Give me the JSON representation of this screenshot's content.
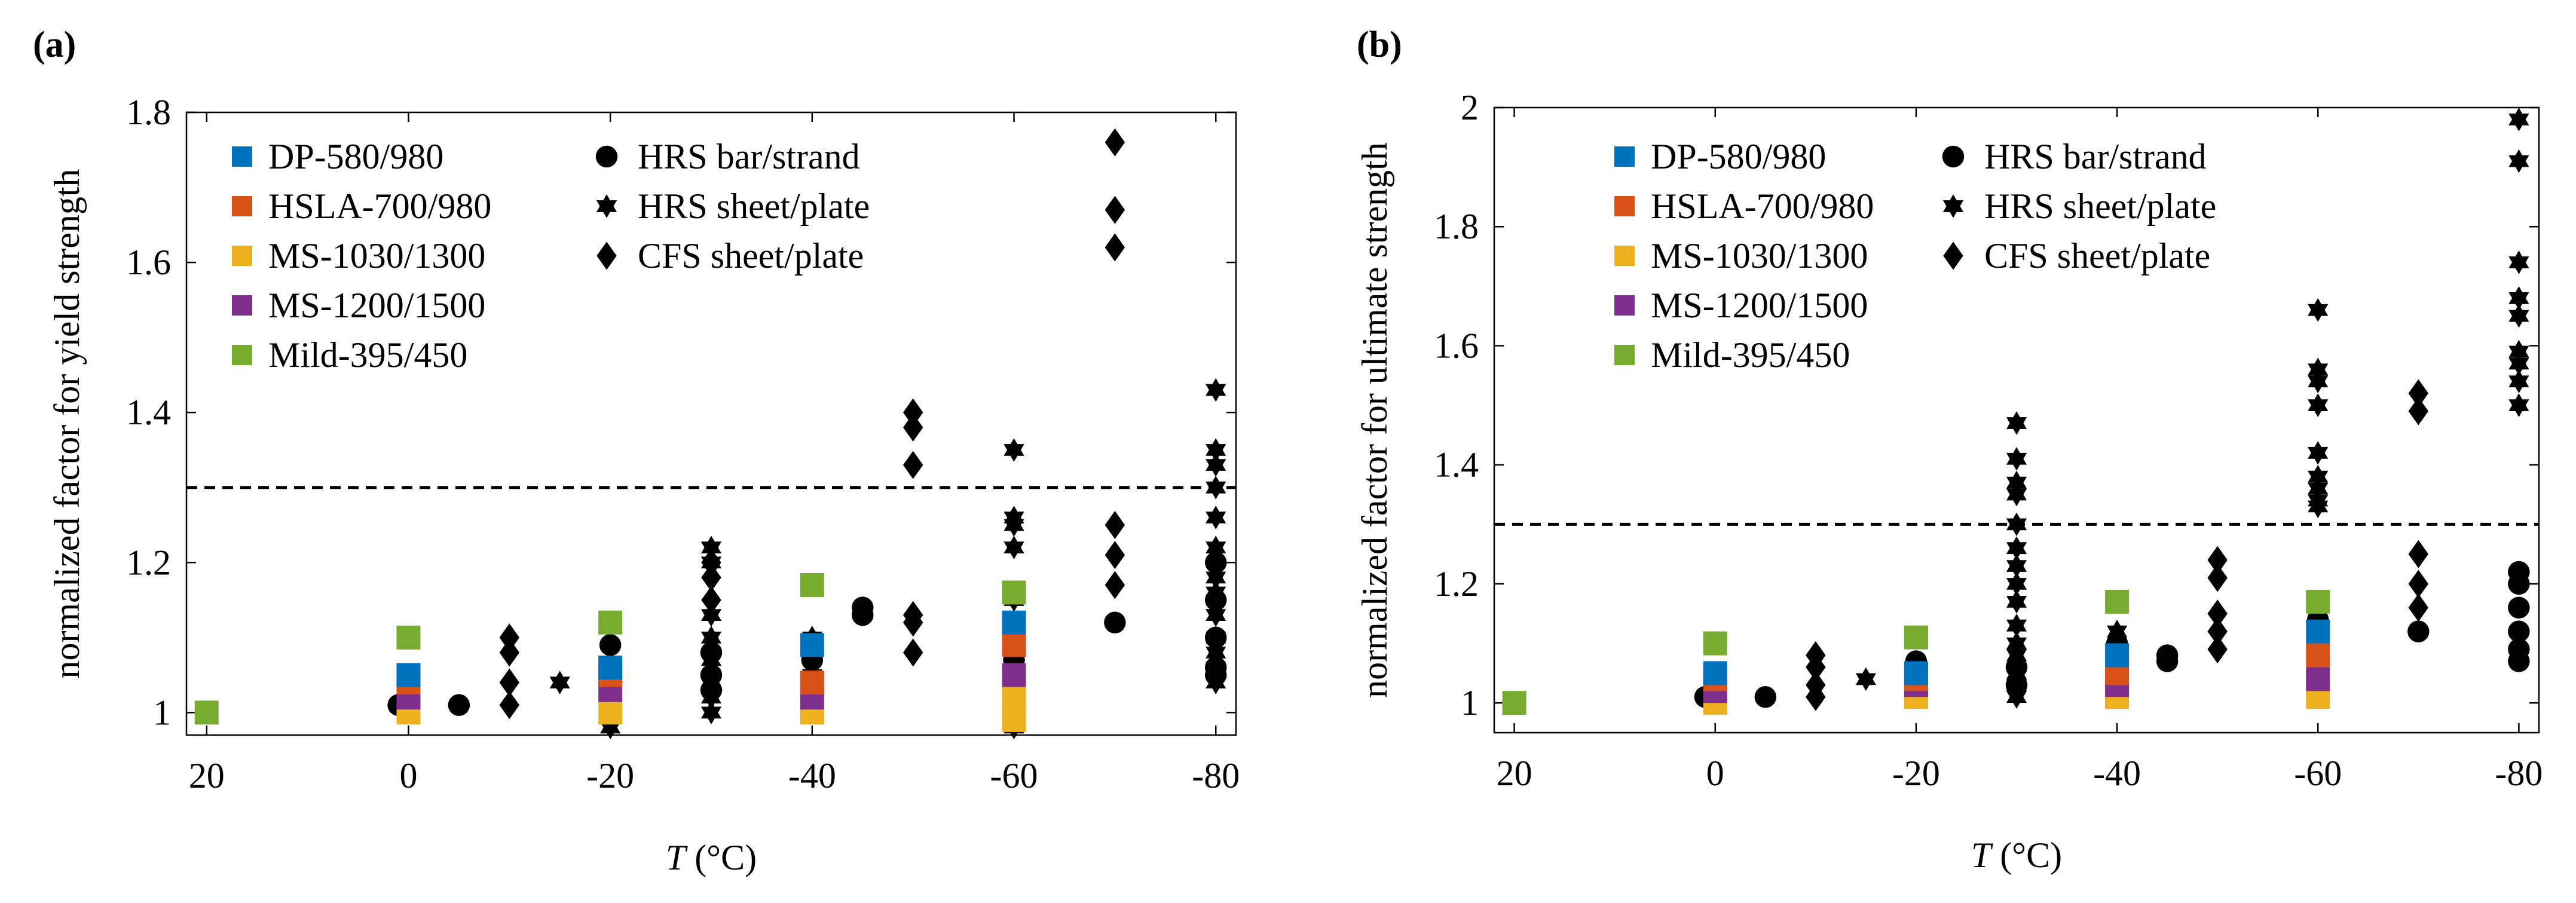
{
  "colors": {
    "DP-580/980": "#0072BD",
    "HSLA-700/980": "#D95319",
    "MS-1030/1300": "#EDB120",
    "MS-1200/1500": "#7E2F8E",
    "Mild-395/450": "#77AC30",
    "black": "#000000"
  },
  "chart_data": [
    {
      "panel_label": "(a)",
      "type": "scatter",
      "xlabel_italic": "T",
      "xlabel_unit": " (°C)",
      "ylabel": "normalized factor for yield strength",
      "xlim": [
        22,
        -82
      ],
      "ylim": [
        0.97,
        1.8
      ],
      "xticks": [
        20,
        0,
        -20,
        -40,
        -60,
        -80
      ],
      "xtick_labels": [
        "20",
        "0",
        "-20",
        "-40",
        "-60",
        "-80"
      ],
      "yticks": [
        1,
        1.2,
        1.4,
        1.6,
        1.8
      ],
      "ytick_labels": [
        "1",
        "1.2",
        "1.4",
        "1.6",
        "1.8"
      ],
      "reference_line": 1.3,
      "legend_left": [
        "DP-580/980",
        "HSLA-700/980",
        "MS-1030/1300",
        "MS-1200/1500",
        "Mild-395/450"
      ],
      "legend_right": [
        {
          "marker": "circle",
          "label": "HRS bar/strand"
        },
        {
          "marker": "hexagram",
          "label": "HRS sheet/plate"
        },
        {
          "marker": "diamond",
          "label": "CFS sheet/plate"
        }
      ],
      "series": [
        {
          "name": "HRS bar/strand",
          "marker": "circle",
          "points": [
            [
              -5,
              1.01
            ],
            [
              1,
              1.01
            ],
            [
              -20,
              1.09
            ],
            [
              -20,
              1.06
            ],
            [
              -20,
              1.03
            ],
            [
              -30,
              1.08
            ],
            [
              -30,
              1.05
            ],
            [
              -30,
              1.03
            ],
            [
              -40,
              1.07
            ],
            [
              -40,
              1.04
            ],
            [
              -45,
              1.14
            ],
            [
              -45,
              1.13
            ],
            [
              -60,
              1.1
            ],
            [
              -60,
              1.07
            ],
            [
              -60,
              1.04
            ],
            [
              -70,
              1.12
            ],
            [
              -80,
              1.2
            ],
            [
              -80,
              1.15
            ],
            [
              -80,
              1.1
            ],
            [
              -80,
              1.06
            ],
            [
              -80,
              1.05
            ]
          ]
        },
        {
          "name": "HRS sheet/plate",
          "marker": "hexagram",
          "points": [
            [
              -15,
              1.04
            ],
            [
              -20,
              0.98
            ],
            [
              -30,
              1.22
            ],
            [
              -30,
              1.2
            ],
            [
              -30,
              1.13
            ],
            [
              -30,
              1.1
            ],
            [
              -30,
              1.07
            ],
            [
              -30,
              1.04
            ],
            [
              -30,
              1.02
            ],
            [
              -30,
              1.0
            ],
            [
              -40,
              1.1
            ],
            [
              -40,
              1.05
            ],
            [
              -60,
              1.35
            ],
            [
              -60,
              1.26
            ],
            [
              -60,
              1.25
            ],
            [
              -60,
              1.22
            ],
            [
              -60,
              1.15
            ],
            [
              -60,
              1.1
            ],
            [
              -60,
              1.05
            ],
            [
              -60,
              0.98
            ],
            [
              -80,
              1.43
            ],
            [
              -80,
              1.35
            ],
            [
              -80,
              1.33
            ],
            [
              -80,
              1.3
            ],
            [
              -80,
              1.26
            ],
            [
              -80,
              1.22
            ],
            [
              -80,
              1.18
            ],
            [
              -80,
              1.16
            ],
            [
              -80,
              1.13
            ],
            [
              -80,
              1.1
            ],
            [
              -80,
              1.08
            ],
            [
              -80,
              1.06
            ],
            [
              -80,
              1.04
            ]
          ]
        },
        {
          "name": "CFS sheet/plate",
          "marker": "diamond",
          "points": [
            [
              -10,
              1.1
            ],
            [
              -10,
              1.08
            ],
            [
              -10,
              1.04
            ],
            [
              -10,
              1.01
            ],
            [
              -30,
              1.2
            ],
            [
              -30,
              1.18
            ],
            [
              -30,
              1.15
            ],
            [
              -50,
              1.4
            ],
            [
              -50,
              1.38
            ],
            [
              -50,
              1.33
            ],
            [
              -50,
              1.13
            ],
            [
              -50,
              1.12
            ],
            [
              -50,
              1.08
            ],
            [
              -70,
              1.76
            ],
            [
              -70,
              1.67
            ],
            [
              -70,
              1.62
            ],
            [
              -70,
              1.25
            ],
            [
              -70,
              1.21
            ],
            [
              -70,
              1.17
            ]
          ]
        },
        {
          "name": "MS-1030/1300",
          "marker": "square",
          "points": [
            [
              0,
              1.0
            ],
            [
              -20,
              1.0
            ],
            [
              -40,
              1.0
            ],
            [
              -60,
              1.02
            ],
            [
              -60,
              0.99
            ]
          ]
        },
        {
          "name": "MS-1200/1500",
          "marker": "square",
          "points": [
            [
              0,
              1.02
            ],
            [
              -20,
              1.03
            ],
            [
              -40,
              1.02
            ],
            [
              -60,
              1.05
            ]
          ]
        },
        {
          "name": "HSLA-700/980",
          "marker": "square",
          "points": [
            [
              0,
              1.04
            ],
            [
              -20,
              1.05
            ],
            [
              -40,
              1.04
            ],
            [
              -60,
              1.09
            ]
          ]
        },
        {
          "name": "DP-580/980",
          "marker": "square",
          "points": [
            [
              0,
              1.05
            ],
            [
              -20,
              1.06
            ],
            [
              -40,
              1.09
            ],
            [
              -60,
              1.12
            ]
          ]
        },
        {
          "name": "Mild-395/450",
          "marker": "square",
          "points": [
            [
              20,
              1.0
            ],
            [
              0,
              1.1
            ],
            [
              -20,
              1.12
            ],
            [
              -40,
              1.17
            ],
            [
              -60,
              1.16
            ]
          ]
        }
      ]
    },
    {
      "panel_label": "(b)",
      "type": "scatter",
      "xlabel_italic": "T",
      "xlabel_unit": " (°C)",
      "ylabel": "normalized factor for ultimate strength",
      "xlim": [
        22,
        -82
      ],
      "ylim": [
        0.95,
        2.0
      ],
      "xticks": [
        20,
        0,
        -20,
        -40,
        -60,
        -80
      ],
      "xtick_labels": [
        "20",
        "0",
        "-20",
        "-40",
        "-60",
        "-80"
      ],
      "yticks": [
        1,
        1.2,
        1.4,
        1.6,
        1.8,
        2
      ],
      "ytick_labels": [
        "1",
        "1.2",
        "1.4",
        "1.6",
        "1.8",
        "2"
      ],
      "reference_line": 1.3,
      "legend_left": [
        "DP-580/980",
        "HSLA-700/980",
        "MS-1030/1300",
        "MS-1200/1500",
        "Mild-395/450"
      ],
      "legend_right": [
        {
          "marker": "circle",
          "label": "HRS bar/strand"
        },
        {
          "marker": "hexagram",
          "label": "HRS sheet/plate"
        },
        {
          "marker": "diamond",
          "label": "CFS sheet/plate"
        }
      ],
      "series": [
        {
          "name": "HRS bar/strand",
          "marker": "circle",
          "points": [
            [
              -5,
              1.01
            ],
            [
              1,
              1.01
            ],
            [
              -20,
              1.07
            ],
            [
              -20,
              1.04
            ],
            [
              -30,
              1.06
            ],
            [
              -30,
              1.03
            ],
            [
              -40,
              1.1
            ],
            [
              -40,
              1.07
            ],
            [
              -45,
              1.08
            ],
            [
              -45,
              1.07
            ],
            [
              -60,
              1.14
            ],
            [
              -60,
              1.11
            ],
            [
              -70,
              1.12
            ],
            [
              -80,
              1.22
            ],
            [
              -80,
              1.2
            ],
            [
              -80,
              1.16
            ],
            [
              -80,
              1.12
            ],
            [
              -80,
              1.09
            ],
            [
              -80,
              1.07
            ]
          ]
        },
        {
          "name": "HRS sheet/plate",
          "marker": "hexagram",
          "points": [
            [
              -15,
              1.04
            ],
            [
              -30,
              1.47
            ],
            [
              -30,
              1.41
            ],
            [
              -30,
              1.37
            ],
            [
              -30,
              1.35
            ],
            [
              -30,
              1.3
            ],
            [
              -30,
              1.26
            ],
            [
              -30,
              1.23
            ],
            [
              -30,
              1.2
            ],
            [
              -30,
              1.17
            ],
            [
              -30,
              1.13
            ],
            [
              -30,
              1.1
            ],
            [
              -30,
              1.08
            ],
            [
              -30,
              1.05
            ],
            [
              -30,
              1.03
            ],
            [
              -30,
              1.01
            ],
            [
              -40,
              1.12
            ],
            [
              -40,
              1.03
            ],
            [
              -60,
              1.66
            ],
            [
              -60,
              1.56
            ],
            [
              -60,
              1.54
            ],
            [
              -60,
              1.5
            ],
            [
              -60,
              1.42
            ],
            [
              -60,
              1.38
            ],
            [
              -60,
              1.36
            ],
            [
              -60,
              1.34
            ],
            [
              -60,
              1.33
            ],
            [
              -80,
              1.98
            ],
            [
              -80,
              1.91
            ],
            [
              -80,
              1.74
            ],
            [
              -80,
              1.68
            ],
            [
              -80,
              1.65
            ],
            [
              -80,
              1.59
            ],
            [
              -80,
              1.57
            ],
            [
              -80,
              1.54
            ],
            [
              -80,
              1.5
            ]
          ]
        },
        {
          "name": "CFS sheet/plate",
          "marker": "diamond",
          "points": [
            [
              -10,
              1.08
            ],
            [
              -10,
              1.06
            ],
            [
              -10,
              1.03
            ],
            [
              -10,
              1.01
            ],
            [
              -50,
              1.24
            ],
            [
              -50,
              1.21
            ],
            [
              -50,
              1.15
            ],
            [
              -50,
              1.12
            ],
            [
              -50,
              1.09
            ],
            [
              -70,
              1.52
            ],
            [
              -70,
              1.49
            ],
            [
              -70,
              1.25
            ],
            [
              -70,
              1.2
            ],
            [
              -70,
              1.16
            ]
          ]
        },
        {
          "name": "MS-1030/1300",
          "marker": "square",
          "points": [
            [
              0,
              1.0
            ],
            [
              -20,
              1.01
            ],
            [
              -40,
              1.01
            ],
            [
              -60,
              1.01
            ]
          ]
        },
        {
          "name": "MS-1200/1500",
          "marker": "square",
          "points": [
            [
              0,
              1.02
            ],
            [
              -20,
              1.03
            ],
            [
              -40,
              1.03
            ],
            [
              -60,
              1.04
            ]
          ]
        },
        {
          "name": "HSLA-700/980",
          "marker": "square",
          "points": [
            [
              0,
              1.04
            ],
            [
              -20,
              1.04
            ],
            [
              -40,
              1.05
            ],
            [
              -60,
              1.08
            ]
          ]
        },
        {
          "name": "DP-580/980",
          "marker": "square",
          "points": [
            [
              0,
              1.05
            ],
            [
              -20,
              1.05
            ],
            [
              -40,
              1.08
            ],
            [
              -60,
              1.12
            ]
          ]
        },
        {
          "name": "Mild-395/450",
          "marker": "square",
          "points": [
            [
              20,
              1.0
            ],
            [
              0,
              1.1
            ],
            [
              -20,
              1.11
            ],
            [
              -40,
              1.17
            ],
            [
              -60,
              1.17
            ]
          ]
        }
      ]
    }
  ]
}
